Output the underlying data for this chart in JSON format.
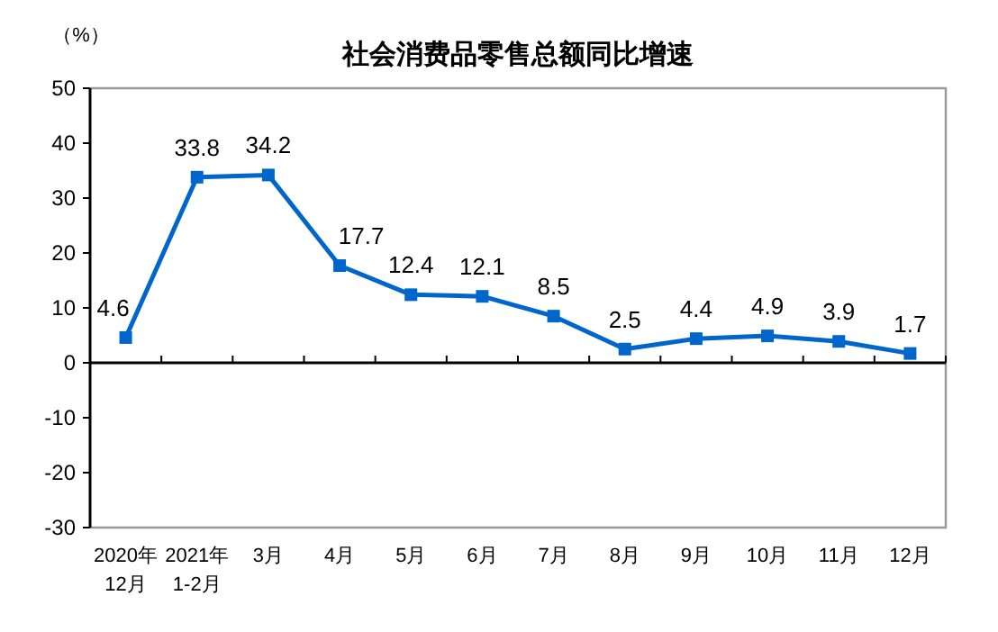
{
  "chart_data": {
    "type": "line",
    "title": "社会消费品零售总额同比增速",
    "ylabel": "（%）",
    "categories": [
      "2020年\n12月",
      "2021年\n1-2月",
      "3月",
      "4月",
      "5月",
      "6月",
      "7月",
      "8月",
      "9月",
      "10月",
      "11月",
      "12月"
    ],
    "series": [
      {
        "color": "#0066cc",
        "values": [
          4.6,
          33.8,
          34.2,
          17.7,
          12.4,
          12.1,
          8.5,
          2.5,
          4.4,
          4.9,
          3.9,
          1.7
        ]
      }
    ],
    "ylim": [
      -30,
      50
    ],
    "yticks": [
      -30,
      -20,
      -10,
      0,
      10,
      20,
      30,
      40,
      50
    ],
    "marker": "square",
    "data_labels": true
  }
}
